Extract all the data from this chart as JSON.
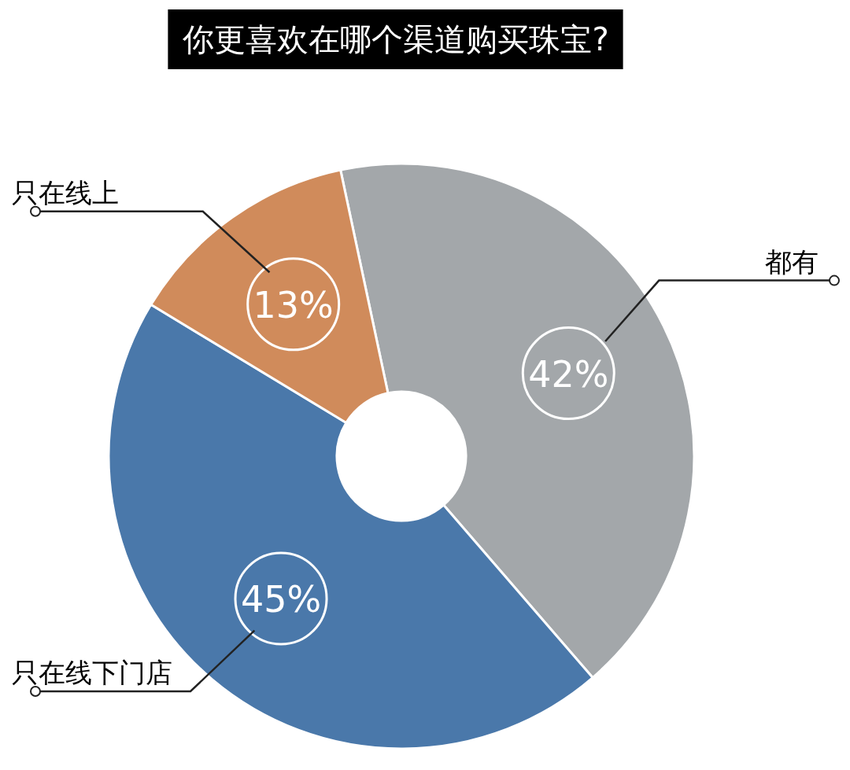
{
  "chart_data": {
    "type": "donut",
    "title": "你更喜欢在哪个渠道购买珠宝?",
    "categories": [
      "都有",
      "只在线下门店",
      "只在线上"
    ],
    "values": [
      42,
      45,
      13
    ],
    "colors": [
      "#a3a7aa",
      "#4a78aa",
      "#d08b5b"
    ],
    "value_labels": [
      "42%",
      "45%",
      "13%"
    ]
  }
}
